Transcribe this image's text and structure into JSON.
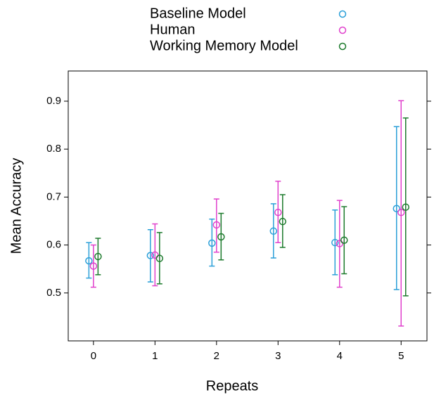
{
  "chart_data": {
    "type": "errorbar-dot",
    "x_label": "Repeats",
    "y_label": "Mean Accuracy",
    "x": [
      0,
      1,
      2,
      3,
      4,
      5
    ],
    "xlim": [
      -0.41,
      5.42
    ],
    "xticks": [
      0,
      1,
      2,
      3,
      4,
      5
    ],
    "ylim": [
      0.4,
      0.963
    ],
    "yticks": [
      0.5,
      0.6,
      0.7,
      0.8,
      0.9
    ],
    "series": [
      {
        "name": "Baseline Model",
        "color": "#2a9fd8",
        "values": [
          0.567,
          0.578,
          0.604,
          0.629,
          0.605,
          0.676
        ],
        "lower": [
          0.531,
          0.523,
          0.556,
          0.573,
          0.538,
          0.507
        ],
        "upper": [
          0.605,
          0.632,
          0.654,
          0.686,
          0.673,
          0.847
        ]
      },
      {
        "name": "Human",
        "color": "#e040cc",
        "values": [
          0.556,
          0.579,
          0.642,
          0.668,
          0.603,
          0.668
        ],
        "lower": [
          0.512,
          0.515,
          0.585,
          0.605,
          0.512,
          0.431
        ],
        "upper": [
          0.6,
          0.644,
          0.696,
          0.733,
          0.693,
          0.901
        ]
      },
      {
        "name": "Working Memory Model",
        "color": "#1c7a2c",
        "values": [
          0.576,
          0.572,
          0.617,
          0.649,
          0.61,
          0.679
        ],
        "lower": [
          0.538,
          0.519,
          0.569,
          0.595,
          0.54,
          0.494
        ],
        "upper": [
          0.614,
          0.626,
          0.666,
          0.705,
          0.68,
          0.865
        ]
      }
    ]
  }
}
